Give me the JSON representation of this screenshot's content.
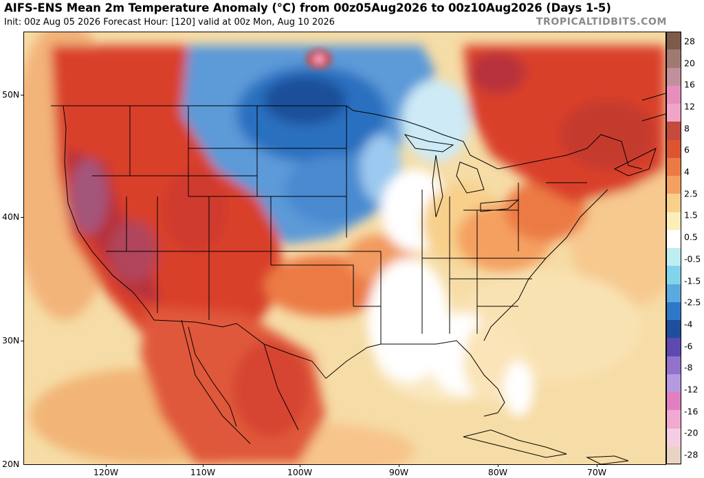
{
  "header": {
    "title": "AIFS-ENS Mean 2m Temperature Anomaly (°C) from 00z05Aug2026 to 00z10Aug2026 (Days 1-5)",
    "subtitle": "Init: 00z Aug 05 2026   Forecast Hour: [120]   valid at 00z Mon, Aug 10 2026",
    "brand": "TROPICALTIDBITS.COM"
  },
  "map": {
    "lat_labels": [
      "50N",
      "40N",
      "30N",
      "20N"
    ],
    "lon_labels": [
      "120W",
      "110W",
      "100W",
      "90W",
      "80W",
      "70W"
    ],
    "colors": {
      "ocean_warm": "#f6dca6",
      "land_neutral": "#ffffff",
      "hot": "#d9412b",
      "very_hot": "#b8323a",
      "extreme_hot": "#a4547a",
      "warm": "#ee8552",
      "mild": "#f7b278",
      "cool": "#5c9ad8",
      "cold": "#2a6fc0",
      "very_cold": "#1c4f99"
    }
  },
  "colorbar": {
    "labels": [
      "28",
      "20",
      "16",
      "12",
      "8",
      "6",
      "4",
      "2.5",
      "1.5",
      "0.5",
      "-0.5",
      "-1.5",
      "-2.5",
      "-4",
      "-6",
      "-8",
      "-12",
      "-16",
      "-20",
      "-28"
    ],
    "colors": [
      "#7e5b48",
      "#a07a72",
      "#c48f9c",
      "#e68fbd",
      "#f1a4c8",
      "#c44a3c",
      "#dc5530",
      "#ec7a44",
      "#f4a061",
      "#f8d08c",
      "#fbeeb8",
      "#ffffff",
      "#bdeef2",
      "#82d4ea",
      "#5aa9e0",
      "#2f78c8",
      "#1d4f9c",
      "#5e49b0",
      "#9173cd",
      "#b69ae0",
      "#e27fc0",
      "#f0a9d0",
      "#f5cde0",
      "#ead3c3"
    ]
  }
}
